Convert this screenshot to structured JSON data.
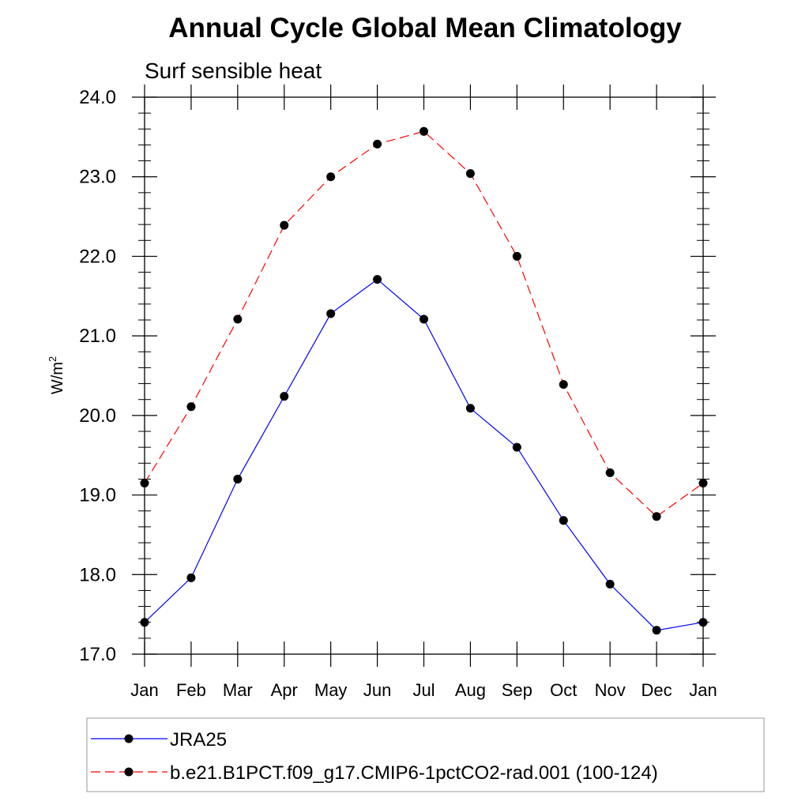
{
  "chart_data": {
    "type": "line",
    "title": "Annual Cycle Global Mean Climatology",
    "subtitle": "Surf sensible heat",
    "ylabel": "W/m",
    "ylabel_superscript": "2",
    "xlabel": "",
    "categories": [
      "Jan",
      "Feb",
      "Mar",
      "Apr",
      "May",
      "Jun",
      "Jul",
      "Aug",
      "Sep",
      "Oct",
      "Nov",
      "Dec",
      "Jan"
    ],
    "ylim": [
      17.0,
      24.0
    ],
    "yticks": [
      "17.0",
      "18.0",
      "19.0",
      "20.0",
      "21.0",
      "22.0",
      "23.0",
      "24.0"
    ],
    "grid": false,
    "legend_position": "bottom",
    "series": [
      {
        "name": "JRA25",
        "color": "#0000ff",
        "style": "solid",
        "values": [
          17.4,
          17.96,
          19.2,
          20.24,
          21.28,
          21.71,
          21.21,
          20.09,
          19.6,
          18.68,
          17.88,
          17.3,
          17.4
        ]
      },
      {
        "name": "b.e21.B1PCT.f09_g17.CMIP6-1pctCO2-rad.001 (100-124)",
        "color": "#ff0000",
        "style": "dashed",
        "values": [
          19.15,
          20.11,
          21.21,
          22.39,
          23.0,
          23.41,
          23.57,
          23.04,
          22.0,
          20.39,
          19.28,
          18.73,
          19.15
        ]
      }
    ]
  }
}
